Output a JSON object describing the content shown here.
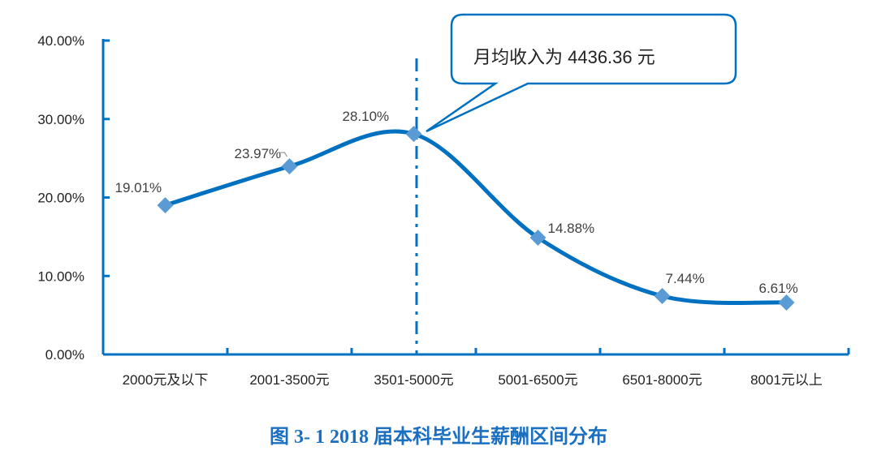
{
  "chart_data": {
    "type": "line",
    "title": "图 3- 1    2018 届本科毕业生薪酬区间分布",
    "categories": [
      "2000元及以下",
      "2001-3500元",
      "3501-5000元",
      "5001-6500元",
      "6501-8000元",
      "8001元以上"
    ],
    "values": [
      19.01,
      23.97,
      28.1,
      14.88,
      7.44,
      6.61
    ],
    "data_labels": [
      "19.01%",
      "23.97%",
      "28.10%",
      "14.88%",
      "7.44%",
      "6.61%"
    ],
    "y_ticks": [
      "0.00%",
      "10.00%",
      "20.00%",
      "30.00%",
      "40.00%"
    ],
    "ylim": [
      0,
      40
    ],
    "grid": false,
    "smooth": true,
    "annotation": "月均收入为 4436.36 元",
    "line_color": "#0070c0",
    "marker_color": "#5b9bd5",
    "marker": "diamond"
  }
}
